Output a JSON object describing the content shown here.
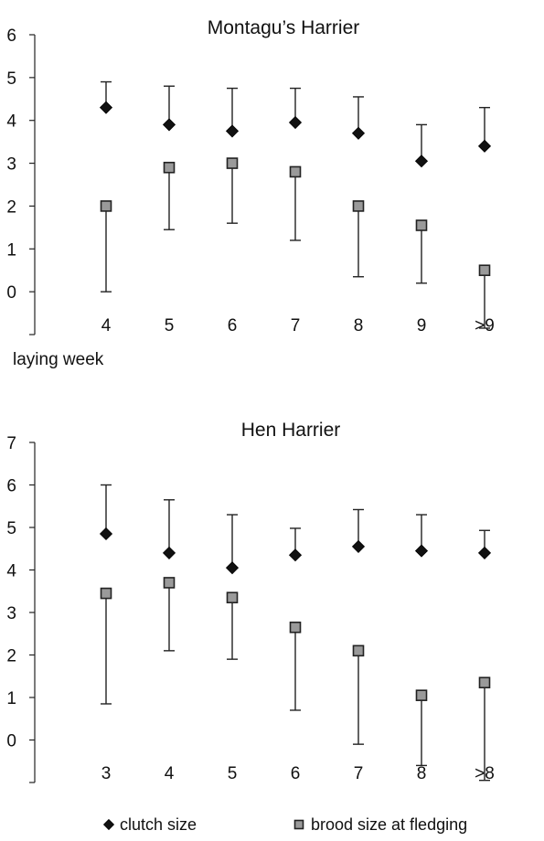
{
  "chart_data": [
    {
      "type": "scatter",
      "title": "Montagu’s Harrier",
      "xlabel": "laying week",
      "ylabel": "",
      "categories": [
        "4",
        "5",
        "6",
        "7",
        "8",
        "9",
        ">9"
      ],
      "ylim": [
        -1,
        6
      ],
      "yticks": [
        0,
        1,
        2,
        3,
        4,
        5,
        6
      ],
      "grid": false,
      "series": [
        {
          "name": "clutch size",
          "marker": "diamond",
          "color": "#111111",
          "values": [
            4.3,
            3.9,
            3.75,
            3.95,
            3.7,
            3.05,
            3.4
          ],
          "error_high": [
            4.9,
            4.8,
            4.75,
            4.75,
            4.55,
            3.9,
            4.3
          ],
          "error_low": [
            null,
            null,
            null,
            null,
            null,
            null,
            null
          ]
        },
        {
          "name": "brood size at fledging",
          "marker": "square",
          "color": "#9a9a9a",
          "values": [
            2.0,
            2.9,
            3.0,
            2.8,
            2.0,
            1.55,
            0.5
          ],
          "error_high": [
            null,
            null,
            null,
            null,
            null,
            null,
            null
          ],
          "error_low": [
            0.0,
            1.45,
            1.6,
            1.2,
            0.35,
            0.2,
            -0.85
          ]
        }
      ]
    },
    {
      "type": "scatter",
      "title": "Hen Harrier",
      "xlabel": "",
      "ylabel": "",
      "categories": [
        "3",
        "4",
        "5",
        "6",
        "7",
        "8",
        ">8"
      ],
      "ylim": [
        -1,
        7
      ],
      "yticks": [
        0,
        1,
        2,
        3,
        4,
        5,
        6,
        7
      ],
      "grid": false,
      "series": [
        {
          "name": "clutch size",
          "marker": "diamond",
          "color": "#111111",
          "values": [
            4.85,
            4.4,
            4.05,
            4.35,
            4.55,
            4.45,
            4.4
          ],
          "error_high": [
            6.0,
            5.65,
            5.3,
            4.98,
            5.42,
            5.3,
            4.93
          ],
          "error_low": [
            null,
            null,
            null,
            null,
            null,
            null,
            null
          ]
        },
        {
          "name": "brood size at fledging",
          "marker": "square",
          "color": "#9a9a9a",
          "values": [
            3.45,
            3.7,
            3.35,
            2.65,
            2.1,
            1.05,
            1.35
          ],
          "error_high": [
            null,
            null,
            null,
            null,
            null,
            null,
            null
          ],
          "error_low": [
            0.85,
            2.1,
            1.9,
            0.7,
            -0.1,
            -0.6,
            -0.95
          ]
        }
      ]
    }
  ],
  "legend": {
    "position": "bottom",
    "items": [
      {
        "label": "clutch size",
        "marker": "diamond",
        "color": "#111111"
      },
      {
        "label": "brood size at fledging",
        "marker": "square",
        "color": "#9a9a9a"
      }
    ]
  }
}
